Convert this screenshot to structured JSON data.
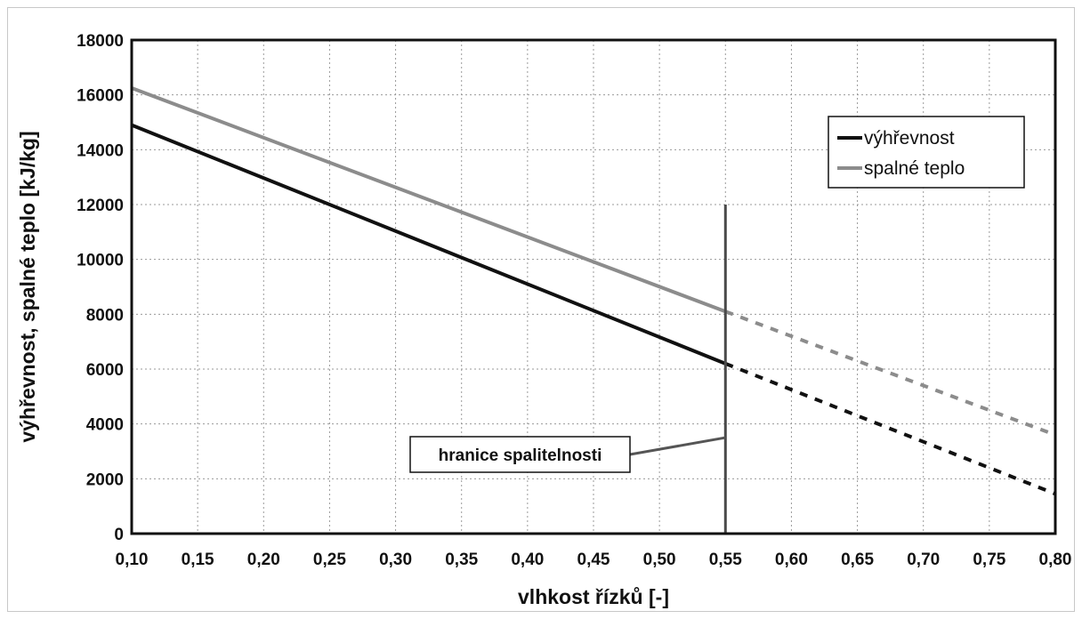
{
  "chart_data": {
    "type": "line",
    "xlabel": "vlhkost řízků [-]",
    "ylabel": "výhřevnost, spalné teplo [kJ/kg]",
    "xlim": [
      0.1,
      0.8
    ],
    "ylim": [
      0,
      18000
    ],
    "x_ticks": [
      "0,10",
      "0,15",
      "0,20",
      "0,25",
      "0,30",
      "0,35",
      "0,40",
      "0,45",
      "0,50",
      "0,55",
      "0,60",
      "0,65",
      "0,70",
      "0,75",
      "0,80"
    ],
    "y_ticks": [
      "0",
      "2000",
      "4000",
      "6000",
      "8000",
      "10000",
      "12000",
      "14000",
      "16000",
      "18000"
    ],
    "grid": true,
    "legend_position": "top-right",
    "series": [
      {
        "name": "výhřevnost",
        "color": "#111111",
        "solid": {
          "x": [
            0.1,
            0.55
          ],
          "y": [
            14900,
            6200
          ]
        },
        "dashed": {
          "x": [
            0.55,
            0.8
          ],
          "y": [
            6200,
            1450
          ]
        }
      },
      {
        "name": "spalné teplo",
        "color": "#8c8c8c",
        "solid": {
          "x": [
            0.1,
            0.55
          ],
          "y": [
            16250,
            8100
          ]
        },
        "dashed": {
          "x": [
            0.55,
            0.8
          ],
          "y": [
            8100,
            3600
          ]
        }
      }
    ],
    "annotations": [
      {
        "text": "hranice spalitelnosti",
        "x": 0.55,
        "y_range": [
          0,
          12000
        ],
        "pointer_y": 3500
      }
    ]
  }
}
